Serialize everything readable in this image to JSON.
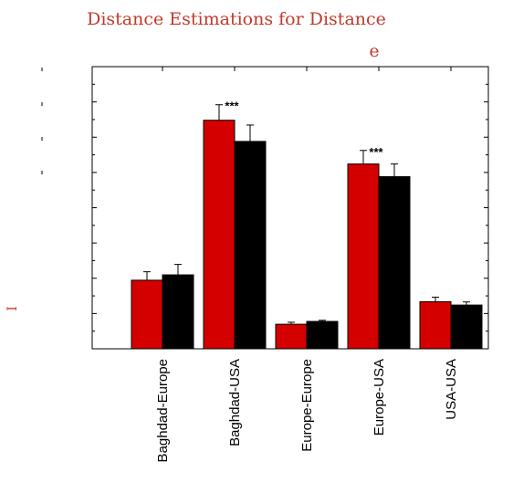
{
  "chart_data": {
    "type": "bar",
    "title_line1": "Distance Estimations for Distance",
    "title_line2": "e",
    "ylabel": "I",
    "categories": [
      "Baghdad-Europe",
      "Baghdad-USA",
      "Europe-Europe",
      "Europe-USA",
      "USA-USA"
    ],
    "ylim": [
      0,
      1
    ],
    "series": [
      {
        "color": "#d40000",
        "values": [
          0.243,
          0.81,
          0.087,
          0.655,
          0.167
        ],
        "errors": [
          0.03,
          0.055,
          0.007,
          0.048,
          0.016
        ]
      },
      {
        "color": "#000000",
        "values": [
          0.262,
          0.735,
          0.097,
          0.61,
          0.155
        ],
        "errors": [
          0.037,
          0.058,
          0.004,
          0.045,
          0.011
        ]
      }
    ],
    "annotations": [
      {
        "category": "Baghdad-USA",
        "text": "***"
      },
      {
        "category": "Europe-USA",
        "text": "***"
      }
    ],
    "grid": false
  }
}
